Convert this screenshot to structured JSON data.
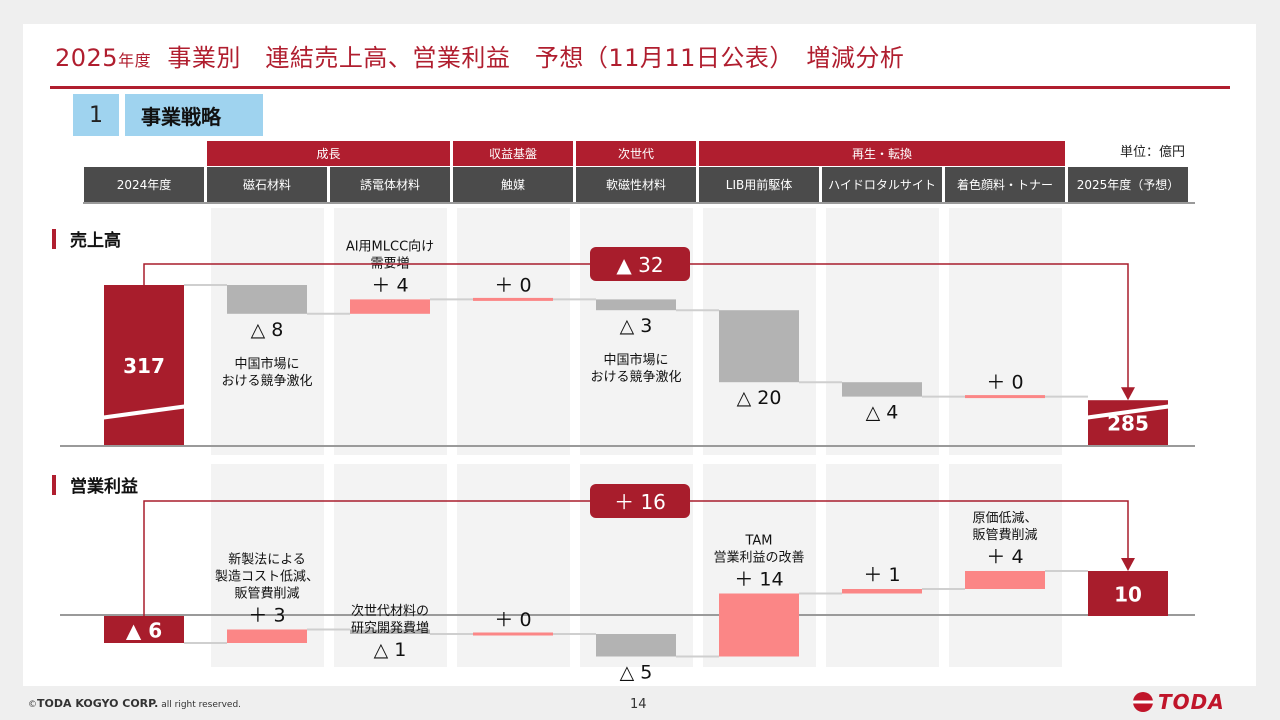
{
  "page": {
    "title_year": "2025",
    "title_year_suffix": "年度",
    "title_rest": "事業別　連結売上高、営業利益　予想（11月11日公表）　増減分析",
    "section_number": "1",
    "section_label": "事業戦略",
    "unit": "単位：億円",
    "categories": [
      {
        "label": "成長",
        "span": [
          1,
          2
        ]
      },
      {
        "label": "収益基盤",
        "span": [
          3,
          3
        ]
      },
      {
        "label": "次世代",
        "span": [
          4,
          4
        ]
      },
      {
        "label": "再生・転換",
        "span": [
          5,
          7
        ]
      }
    ],
    "headers": [
      "2024年度",
      "磁石材料",
      "誘電体材料",
      "触媒",
      "軟磁性材料",
      "LIB用前駆体",
      "ハイドロタルサイト",
      "着色顔料・トナー",
      "2025年度（予想）"
    ],
    "footer": {
      "copyright_mark": "©",
      "company": "TODA KOGYO CORP.",
      "rights": " all right reserved.",
      "page_number": "14",
      "logo_text": "TODA"
    }
  },
  "chart_data": [
    {
      "type": "waterfall",
      "label": "売上高",
      "start": {
        "category": "2024年度",
        "value": 317,
        "label": "317"
      },
      "end": {
        "category": "2025年度（予想）",
        "value": 285,
        "label": "285"
      },
      "total_change_label": "▲ 32",
      "colors": {
        "total": "#a81d2c",
        "increase": "#fb8686",
        "decrease": "#b3b3b3"
      },
      "steps": [
        {
          "category": "磁石材料",
          "delta": -8,
          "label": "△ 8",
          "note": "中国市場に\nおける競争激化"
        },
        {
          "category": "誘電体材料",
          "delta": 4,
          "label": "＋ 4",
          "note": "AI用MLCC向け\n需要増"
        },
        {
          "category": "触媒",
          "delta": 0,
          "label": "＋ 0",
          "note": ""
        },
        {
          "category": "軟磁性材料",
          "delta": -3,
          "label": "△ 3",
          "note": "中国市場に\nおける競争激化"
        },
        {
          "category": "LIB用前駆体",
          "delta": -20,
          "label": "△ 20",
          "note": ""
        },
        {
          "category": "ハイドロタルサイト",
          "delta": -4,
          "label": "△ 4",
          "note": ""
        },
        {
          "category": "着色顔料・トナー",
          "delta": 0,
          "label": "＋ 0",
          "note": ""
        }
      ]
    },
    {
      "type": "waterfall",
      "label": "営業利益",
      "start": {
        "category": "2024年度",
        "value": -6,
        "label": "▲ 6"
      },
      "end": {
        "category": "2025年度（予想）",
        "value": 10,
        "label": "10"
      },
      "total_change_label": "＋ 16",
      "colors": {
        "total": "#a81d2c",
        "increase": "#fb8686",
        "decrease": "#b3b3b3"
      },
      "steps": [
        {
          "category": "磁石材料",
          "delta": 3,
          "label": "＋ 3",
          "note": "新製法による\n製造コスト低減、\n販管費削減"
        },
        {
          "category": "誘電体材料",
          "delta": -1,
          "label": "△ 1",
          "note": "次世代材料の\n研究開発費増"
        },
        {
          "category": "触媒",
          "delta": 0,
          "label": "＋ 0",
          "note": ""
        },
        {
          "category": "軟磁性材料",
          "delta": -5,
          "label": "△ 5",
          "note": ""
        },
        {
          "category": "LIB用前駆体",
          "delta": 14,
          "label": "＋ 14",
          "note": "TAM\n営業利益の改善"
        },
        {
          "category": "ハイドロタルサイト",
          "delta": 1,
          "label": "＋ 1",
          "note": ""
        },
        {
          "category": "着色顔料・トナー",
          "delta": 4,
          "label": "＋ 4",
          "note": "原価低減、\n販管費削減"
        }
      ]
    }
  ]
}
